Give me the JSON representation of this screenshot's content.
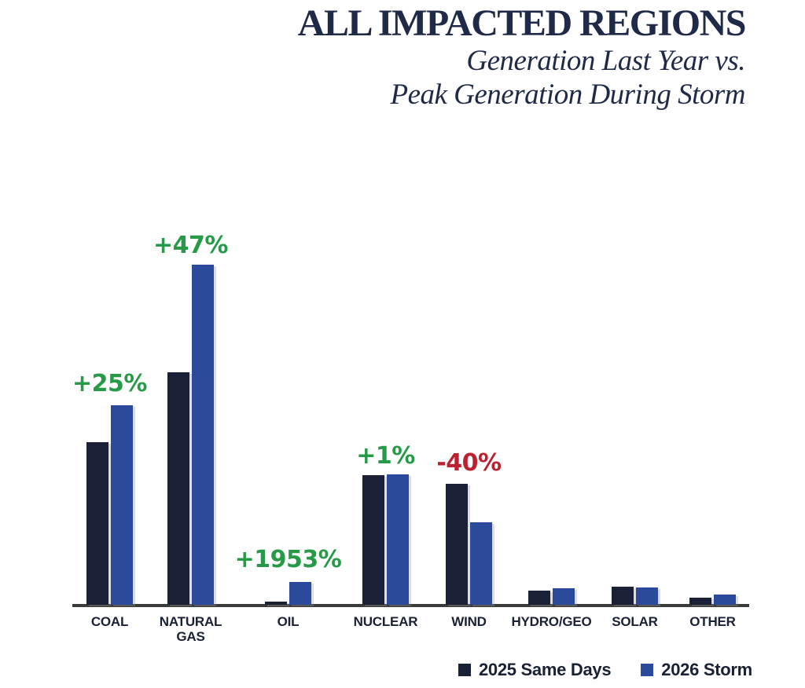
{
  "header": {
    "title": "ALL IMPACTED REGIONS",
    "subtitle_line1": "Generation Last Year vs.",
    "subtitle_line2": "Peak Generation During Storm"
  },
  "colors": {
    "navy_text": "#1f2a48",
    "bar_2025": "#1a2136",
    "bar_2026": "#2c4a9c",
    "positive_label": "#279a47",
    "negative_label": "#bd202e",
    "axis_line": "#3b3b3b"
  },
  "legend": {
    "items": [
      {
        "label": "2025 Same Days",
        "color": "#1a2136"
      },
      {
        "label": "2026 Storm",
        "color": "#2c4a9c"
      }
    ]
  },
  "chart_data": {
    "type": "bar",
    "grouping": "grouped",
    "title": "ALL IMPACTED REGIONS",
    "subtitle": "Generation Last Year vs. Peak Generation During Storm",
    "categories": [
      "COAL",
      "NATURAL GAS",
      "OIL",
      "NUCLEAR",
      "WIND",
      "HYDRO/GEO",
      "SOLAR",
      "OTHER"
    ],
    "series": [
      {
        "name": "2025 Same Days",
        "color": "#1a2136",
        "values": [
          207,
          296,
          4,
          165,
          154,
          18,
          23,
          9
        ]
      },
      {
        "name": "2026 Storm",
        "color": "#2c4a9c",
        "values": [
          254,
          433,
          29,
          166,
          105,
          21,
          22,
          13
        ]
      }
    ],
    "value_unit": "relative bar height in px (no numeric y-axis shown in figure)",
    "change_labels": [
      {
        "category": "COAL",
        "text": "+25%",
        "sentiment": "positive"
      },
      {
        "category": "NATURAL GAS",
        "text": "+47%",
        "sentiment": "positive"
      },
      {
        "category": "OIL",
        "text": "+1953%",
        "sentiment": "positive"
      },
      {
        "category": "NUCLEAR",
        "text": "+1%",
        "sentiment": "positive"
      },
      {
        "category": "WIND",
        "text": "-40%",
        "sentiment": "negative"
      }
    ],
    "xlabel": "",
    "ylabel": "",
    "y_axis_shown": false,
    "grid": false,
    "legend_position": "bottom-right"
  }
}
